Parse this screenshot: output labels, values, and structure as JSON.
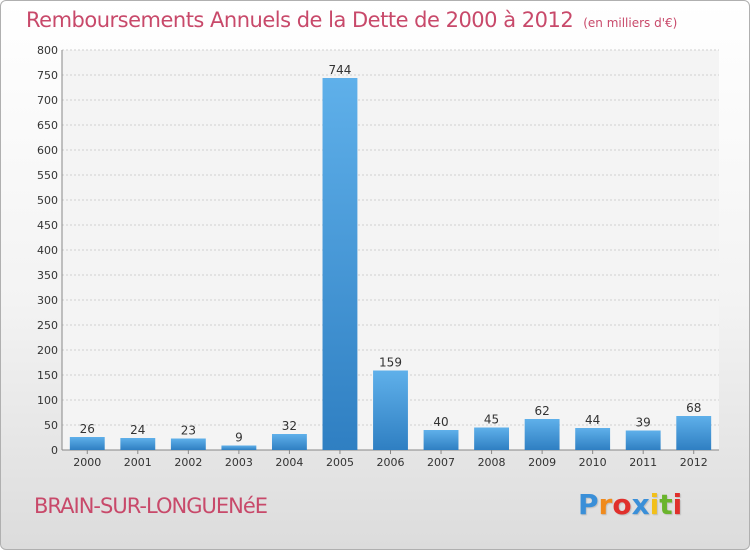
{
  "chart_data": {
    "type": "bar",
    "title": "Remboursements Annuels de la Dette de 2000 à 2012",
    "unit_note": "(en milliers d'€)",
    "categories": [
      "2000",
      "2001",
      "2002",
      "2003",
      "2004",
      "2005",
      "2006",
      "2007",
      "2008",
      "2009",
      "2010",
      "2011",
      "2012"
    ],
    "values": [
      26,
      24,
      23,
      9,
      32,
      744,
      159,
      40,
      45,
      62,
      44,
      39,
      68
    ],
    "ylim": [
      0,
      800
    ],
    "yticks": [
      0,
      50,
      100,
      150,
      200,
      250,
      300,
      350,
      400,
      450,
      500,
      550,
      600,
      650,
      700,
      750,
      800
    ],
    "xlabel": "",
    "ylabel": "",
    "grid": true
  },
  "commune": "BRAIN-SUR-LONGUENéE",
  "logo": {
    "letters": [
      "P",
      "r",
      "o",
      "x",
      "i",
      "t",
      "i"
    ],
    "colors": [
      "#3a8fd8",
      "#f08a1c",
      "#e0302c",
      "#3a8fd8",
      "#f2c01a",
      "#6ab42c",
      "#e0302c"
    ]
  },
  "colors": {
    "title": "#c8496a",
    "bar_top": "#5fb0ea",
    "bar_bottom": "#2f7fc2",
    "grid": "#cfcfcf",
    "axis_text": "#333333"
  }
}
